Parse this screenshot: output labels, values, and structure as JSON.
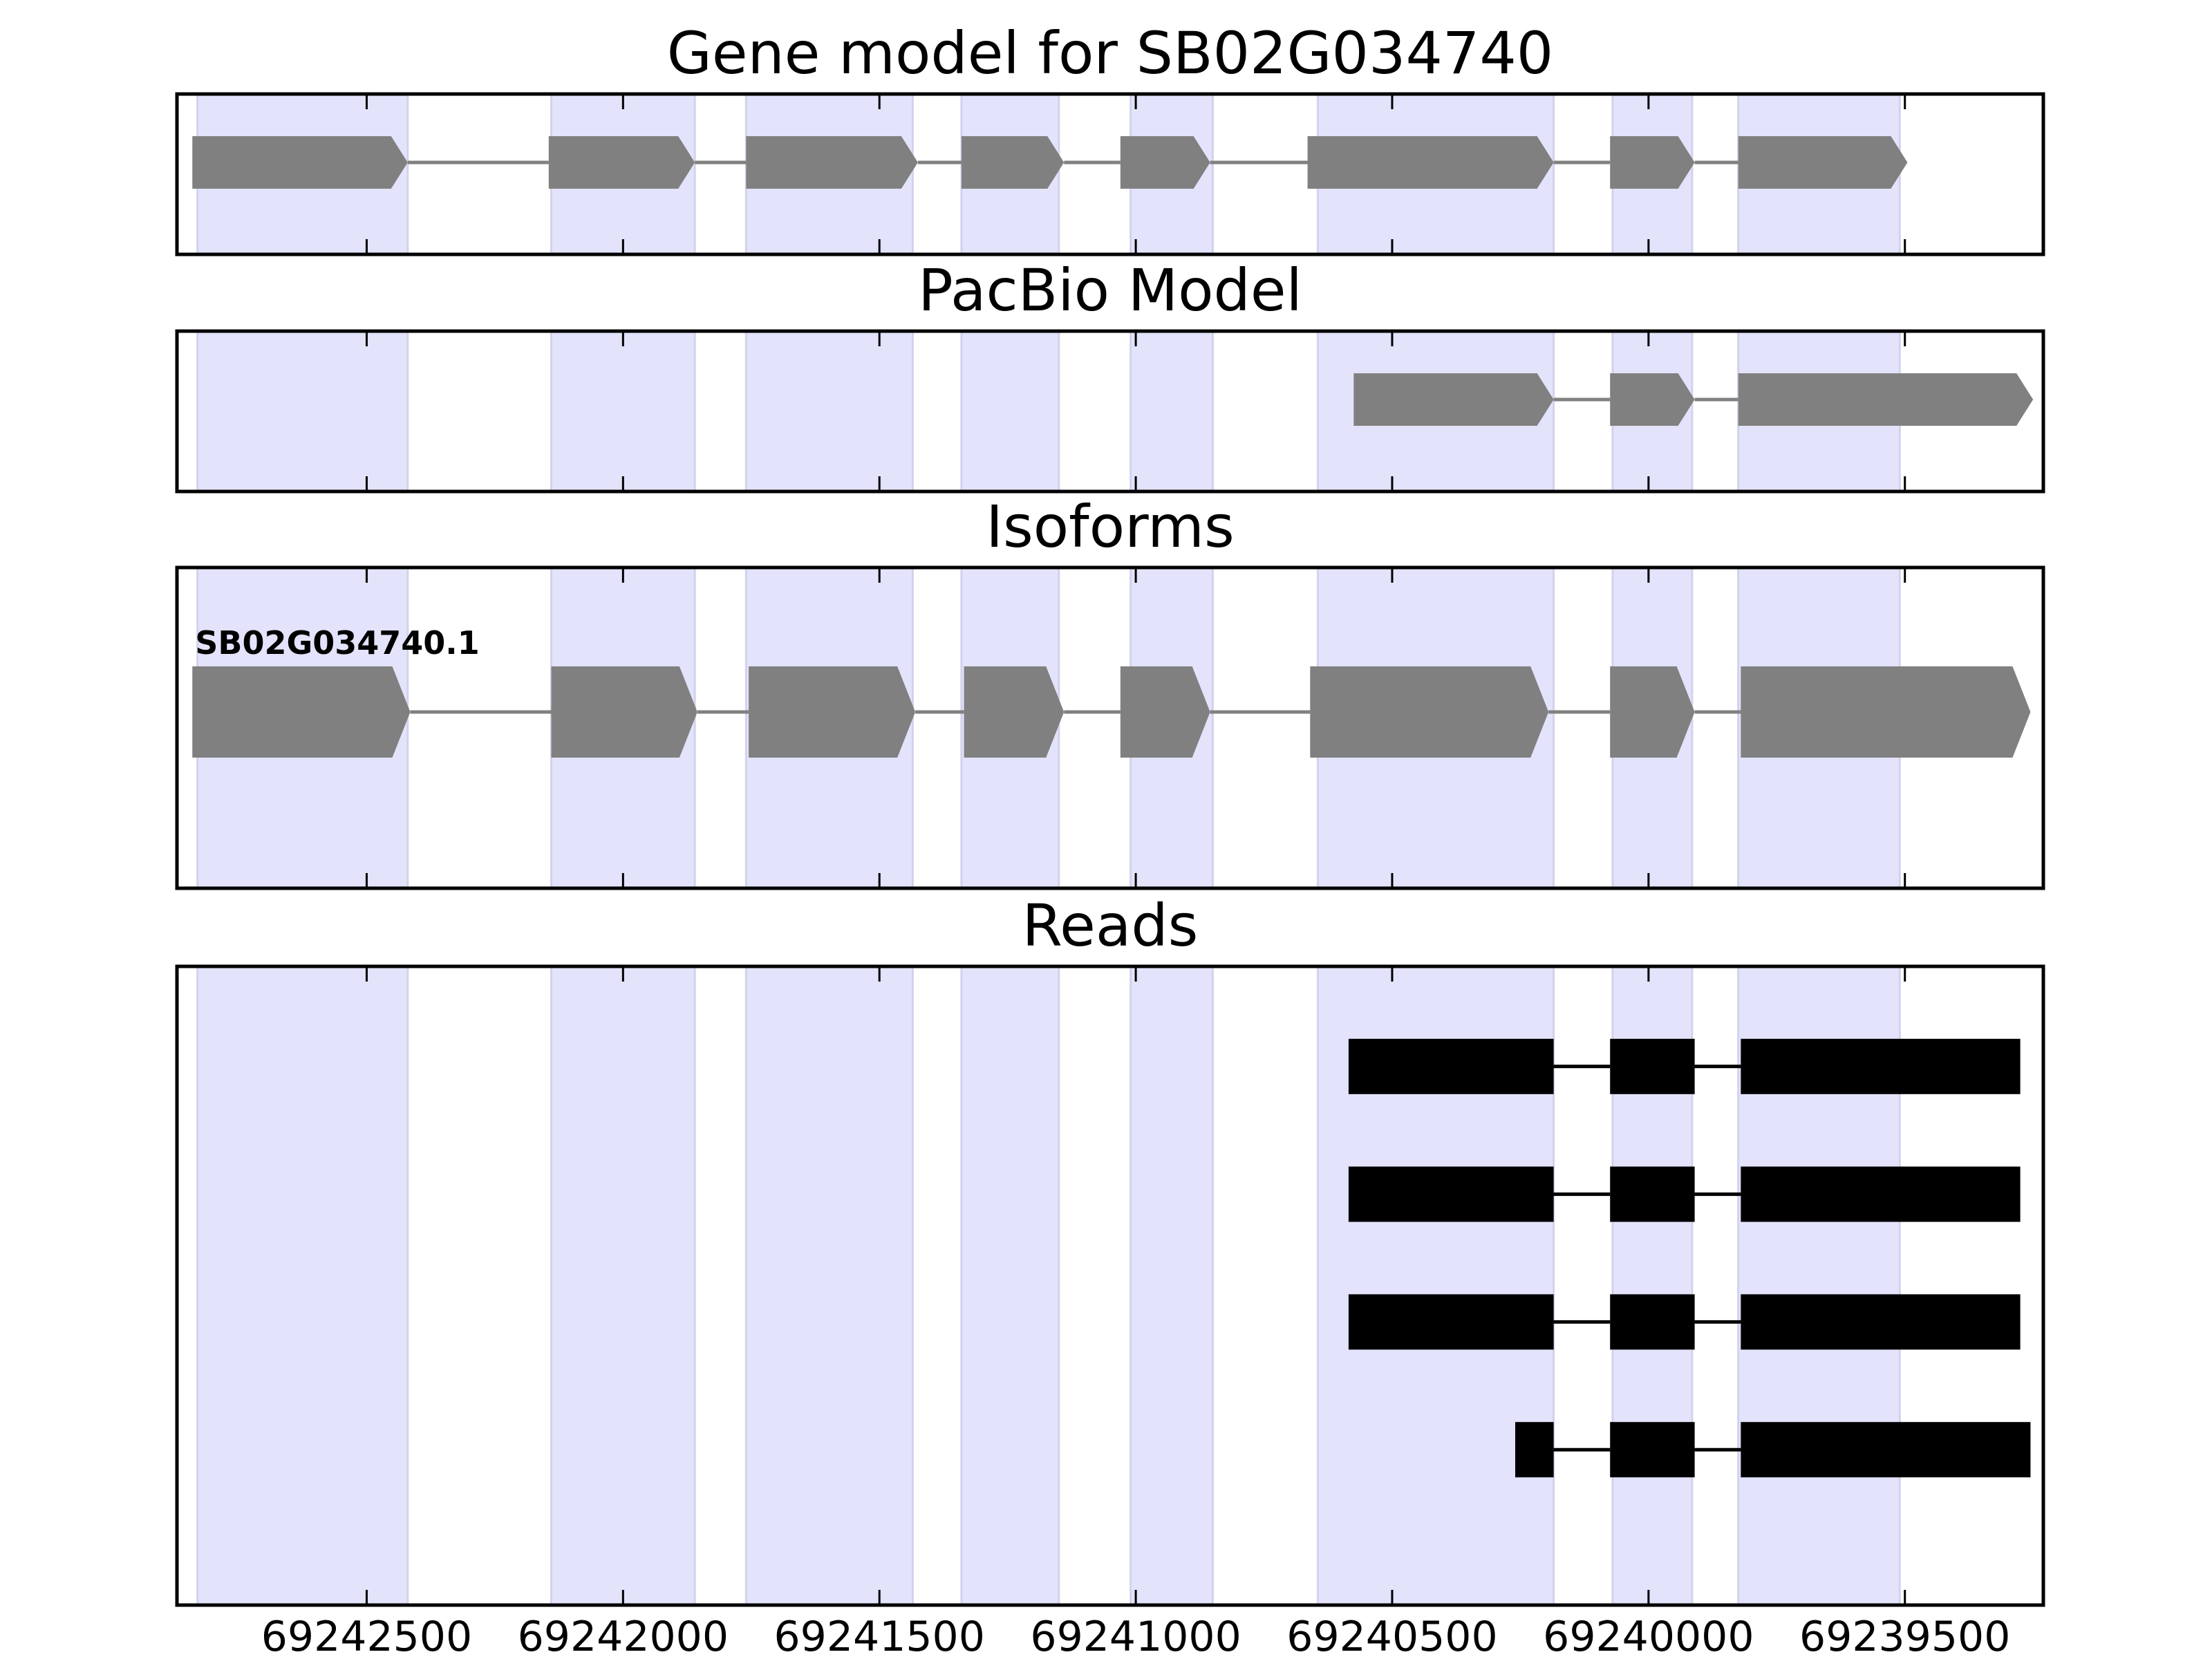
{
  "chart_data": {
    "type": "gene-track",
    "xlim": [
      69242870,
      69239230
    ],
    "axis_reversed": true,
    "xticks": [
      69242500,
      69242000,
      69241500,
      69241000,
      69240500,
      69240000,
      69239500
    ],
    "xtick_labels": [
      "69242500",
      "69242000",
      "69241500",
      "69241000",
      "69240500",
      "69240000",
      "69239500"
    ],
    "highlight_color": "#e3e3fb",
    "feature_color": "#808080",
    "read_color": "#000000",
    "highlight_regions": [
      [
        69242830,
        69242420
      ],
      [
        69242140,
        69241860
      ],
      [
        69241760,
        69241435
      ],
      [
        69241340,
        69241150
      ],
      [
        69241010,
        69240850
      ],
      [
        69240645,
        69240185
      ],
      [
        69240070,
        69239915
      ],
      [
        69239825,
        69239510
      ]
    ],
    "panels": [
      {
        "title": "Gene model for SB02G034740",
        "kind": "model",
        "tracks": [
          {
            "label": "",
            "exons": [
              [
                69242840,
                69242420
              ],
              [
                69242145,
                69241860
              ],
              [
                69241760,
                69241425
              ],
              [
                69241340,
                69241140
              ],
              [
                69241030,
                69240855
              ],
              [
                69240665,
                69240185
              ],
              [
                69240075,
                69239910
              ],
              [
                69239825,
                69239495
              ]
            ]
          }
        ]
      },
      {
        "title": "PacBio Model",
        "kind": "model",
        "tracks": [
          {
            "label": "",
            "exons": [
              [
                69240575,
                69240185
              ],
              [
                69240075,
                69239910
              ],
              [
                69239825,
                69239250
              ]
            ]
          }
        ]
      },
      {
        "title": "Isoforms",
        "kind": "model",
        "tracks": [
          {
            "label": "SB02G034740.1",
            "exons": [
              [
                69242840,
                69242415
              ],
              [
                69242140,
                69241855
              ],
              [
                69241755,
                69241430
              ],
              [
                69241335,
                69241140
              ],
              [
                69241030,
                69240855
              ],
              [
                69240660,
                69240195
              ],
              [
                69240075,
                69239910
              ],
              [
                69239820,
                69239255
              ]
            ]
          }
        ]
      },
      {
        "title": "Reads",
        "kind": "reads",
        "tracks": [
          {
            "label": "",
            "exons": [
              [
                69240585,
                69240185
              ],
              [
                69240075,
                69239910
              ],
              [
                69239820,
                69239275
              ]
            ]
          },
          {
            "label": "",
            "exons": [
              [
                69240585,
                69240185
              ],
              [
                69240075,
                69239910
              ],
              [
                69239820,
                69239275
              ]
            ]
          },
          {
            "label": "",
            "exons": [
              [
                69240585,
                69240185
              ],
              [
                69240075,
                69239910
              ],
              [
                69239820,
                69239275
              ]
            ]
          },
          {
            "label": "",
            "exons": [
              [
                69240260,
                69240185
              ],
              [
                69240075,
                69239910
              ],
              [
                69239820,
                69239255
              ]
            ]
          }
        ]
      }
    ]
  }
}
